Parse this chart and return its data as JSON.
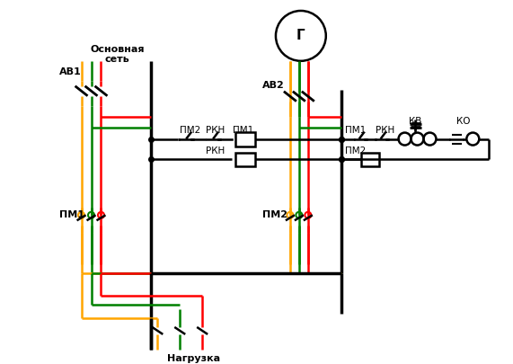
{
  "bg_color": "#ffffff",
  "wire_colors": {
    "orange": "#ffa500",
    "green": "#008000",
    "red": "#ff0000",
    "black": "#000000"
  },
  "labels": {
    "osnov_set": "Основная\nсеть",
    "av1": "АВ1",
    "av2": "АВ2",
    "pm1_left": "ПМ1",
    "pm2_relay": "ПМ2",
    "rkn1": "РКН",
    "pm1_coil": "ПМ1",
    "rkn2": "РКН",
    "pm2_right_label": "ПМ2",
    "pm1_ctrl": "ПМ1",
    "rkn_ctrl": "РКН",
    "pm2_ctrl": "ПМ2",
    "kv": "КВ",
    "ko": "КО",
    "nagruzka": "Нагрузка",
    "g": "Г"
  }
}
